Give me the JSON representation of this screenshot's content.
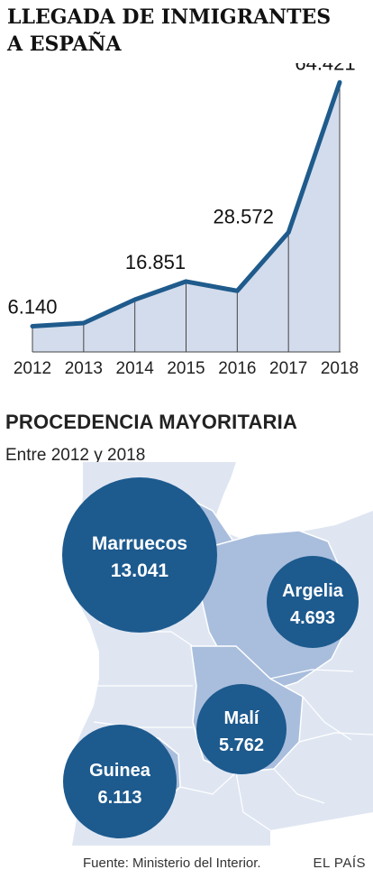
{
  "title_line1": "LLEGADA DE INMIGRANTES",
  "title_line2": "A ESPAÑA",
  "chart_data": {
    "type": "area",
    "x": [
      "2012",
      "2013",
      "2014",
      "2015",
      "2016",
      "2017",
      "2018"
    ],
    "values": [
      6140,
      6900,
      12500,
      16851,
      14600,
      28572,
      64421
    ],
    "labels": [
      {
        "year": "2012",
        "text": "6.140"
      },
      {
        "year": "2015",
        "text": "16.851"
      },
      {
        "year": "2017",
        "text": "28.572"
      },
      {
        "year": "2018",
        "text": "64.421"
      }
    ],
    "ylim": [
      0,
      66000
    ],
    "grid": false,
    "colors": {
      "line": "#1f5b8c",
      "fill": "#d3dcec",
      "drop": "#444444"
    }
  },
  "origin": {
    "title": "PROCEDENCIA MAYORITARIA",
    "subtitle": "Entre 2012 y 2018",
    "countries": [
      {
        "name": "Marruecos",
        "value": "13.041"
      },
      {
        "name": "Argelia",
        "value": "4.693"
      },
      {
        "name": "Malí",
        "value": "5.762"
      },
      {
        "name": "Guinea",
        "value": "6.113"
      }
    ],
    "colors": {
      "bubble": "#1d5a8e",
      "map_base": "#dfe6f2",
      "map_highlight": "#a9bedd",
      "borders": "#ffffff"
    }
  },
  "footer": {
    "source": "Fuente: Ministerio del Interior.",
    "brand": "EL PAÍS"
  }
}
